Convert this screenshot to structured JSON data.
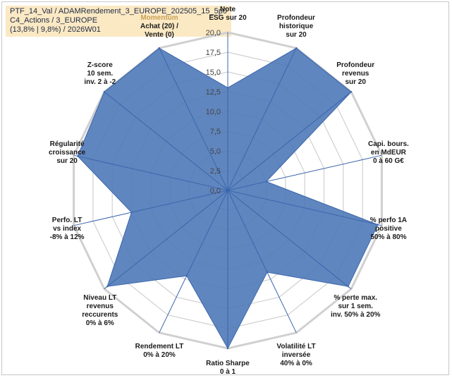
{
  "title": {
    "line1": "PTF_14_Val / ADAMRendement_3_EUROPE_202505_15_5p0",
    "line2": "C4_Actions / 3_EUROPE",
    "line3": "(13,8% | 9,8%) / 2026W01"
  },
  "colors": {
    "fill": "#4f79b8",
    "stroke": "#3a66ad",
    "grid": "#d0d0d0",
    "momentum_label": "#c9a055"
  },
  "chart_data": {
    "type": "radar",
    "rlim": [
      0,
      20
    ],
    "grid": true,
    "tick_labels": [
      "0,0",
      "2,5",
      "5,0",
      "7,5",
      "10,0",
      "12,5",
      "15,0",
      "17,5",
      "20,0"
    ],
    "axes": [
      {
        "lines": [
          "Note",
          "ESG sur 20"
        ],
        "value": 13.0
      },
      {
        "lines": [
          "Profondeur",
          "historique",
          "sur 20"
        ],
        "value": 20.0
      },
      {
        "lines": [
          "Profondeur",
          "revenus",
          "sur 20"
        ],
        "value": 20.0
      },
      {
        "lines": [
          "Capi. bours.",
          "en MdEUR",
          "0 à 60 G€"
        ],
        "value": 5.0
      },
      {
        "lines": [
          "% perfo 1A",
          "positive",
          "50% à 80%"
        ],
        "value": 19.5
      },
      {
        "lines": [
          "% perte max.",
          "sur 1 sem.",
          "inv. 50% à 20%"
        ],
        "value": 19.5
      },
      {
        "lines": [
          "Volatilité LT",
          "inversée",
          "40% à 0%"
        ],
        "value": 11.5
      },
      {
        "lines": [
          "Ratio Sharpe",
          "0 à 1"
        ],
        "value": 20.0
      },
      {
        "lines": [
          "Rendement LT",
          "0% à 20%"
        ],
        "value": 12.0
      },
      {
        "lines": [
          "Niveau LT",
          "revenus",
          "reccurents",
          "0% à 6%"
        ],
        "value": 19.5
      },
      {
        "lines": [
          "Perfo. LT",
          "vs index",
          "-8% à 12%"
        ],
        "value": 12.5
      },
      {
        "lines": [
          "Régularité",
          "croissance",
          "sur 20"
        ],
        "value": 19.5
      },
      {
        "lines": [
          "Z-score",
          "10 sem.",
          "inv. 2 à -2"
        ],
        "value": 20.0
      },
      {
        "lines": [
          "Momentum",
          "Achat (20) /",
          "Vente (0)"
        ],
        "value": 20.0
      }
    ]
  }
}
